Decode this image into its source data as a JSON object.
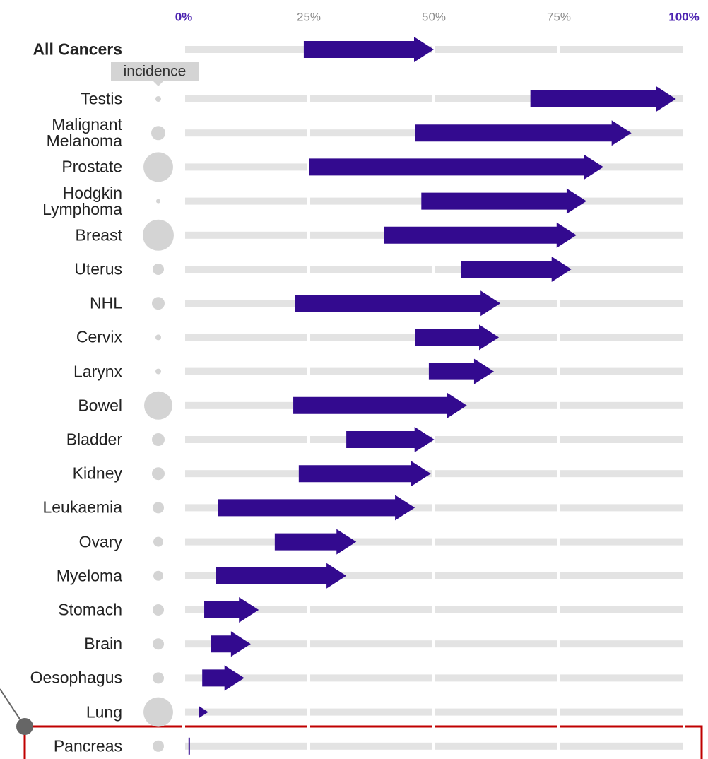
{
  "chart_data": {
    "type": "arrow",
    "categories": [
      "All Cancers",
      "Testis",
      "Malignant Melanoma",
      "Prostate",
      "Hodgkin Lymphoma",
      "Breast",
      "Uterus",
      "NHL",
      "Cervix",
      "Larynx",
      "Bowel",
      "Bladder",
      "Kidney",
      "Leukaemia",
      "Ovary",
      "Myeloma",
      "Stomach",
      "Brain",
      "Oesophagus",
      "Lung",
      "Pancreas"
    ],
    "values_start": [
      24,
      69.3,
      46.2,
      25.1,
      47.5,
      40.1,
      55.4,
      22.2,
      46.2,
      49,
      21.9,
      32.5,
      23,
      6.8,
      18.2,
      6.4,
      4.1,
      5.5,
      3.7,
      3.1,
      1.1
    ],
    "values_end": [
      50,
      98.4,
      89.5,
      83.9,
      80.5,
      78.5,
      77.5,
      63.3,
      63,
      62,
      56.6,
      50.1,
      49.4,
      46.2,
      34.5,
      32.5,
      15,
      13.4,
      12.1,
      4.9,
      1.1
    ],
    "incidence": [
      null,
      16,
      100,
      441,
      9,
      484,
      64,
      81,
      16,
      16,
      400,
      81,
      81,
      64,
      49,
      49,
      64,
      64,
      64,
      441,
      64
    ],
    "annotation": "incidence",
    "xlim": [
      0,
      100
    ],
    "xticks": [
      {
        "value": 0,
        "label": "0%"
      },
      {
        "value": 25,
        "label": "25%"
      },
      {
        "value": 50,
        "label": "50%"
      },
      {
        "value": 75,
        "label": "75%"
      },
      {
        "value": 100,
        "label": "100%"
      }
    ],
    "color": "#330a8f",
    "incidence_color": "#d4d4d4",
    "grid_color": "#e3e3e3",
    "tick_color": "#8c8c8c",
    "tick_end_color": "#4b22b0",
    "grid": true
  }
}
